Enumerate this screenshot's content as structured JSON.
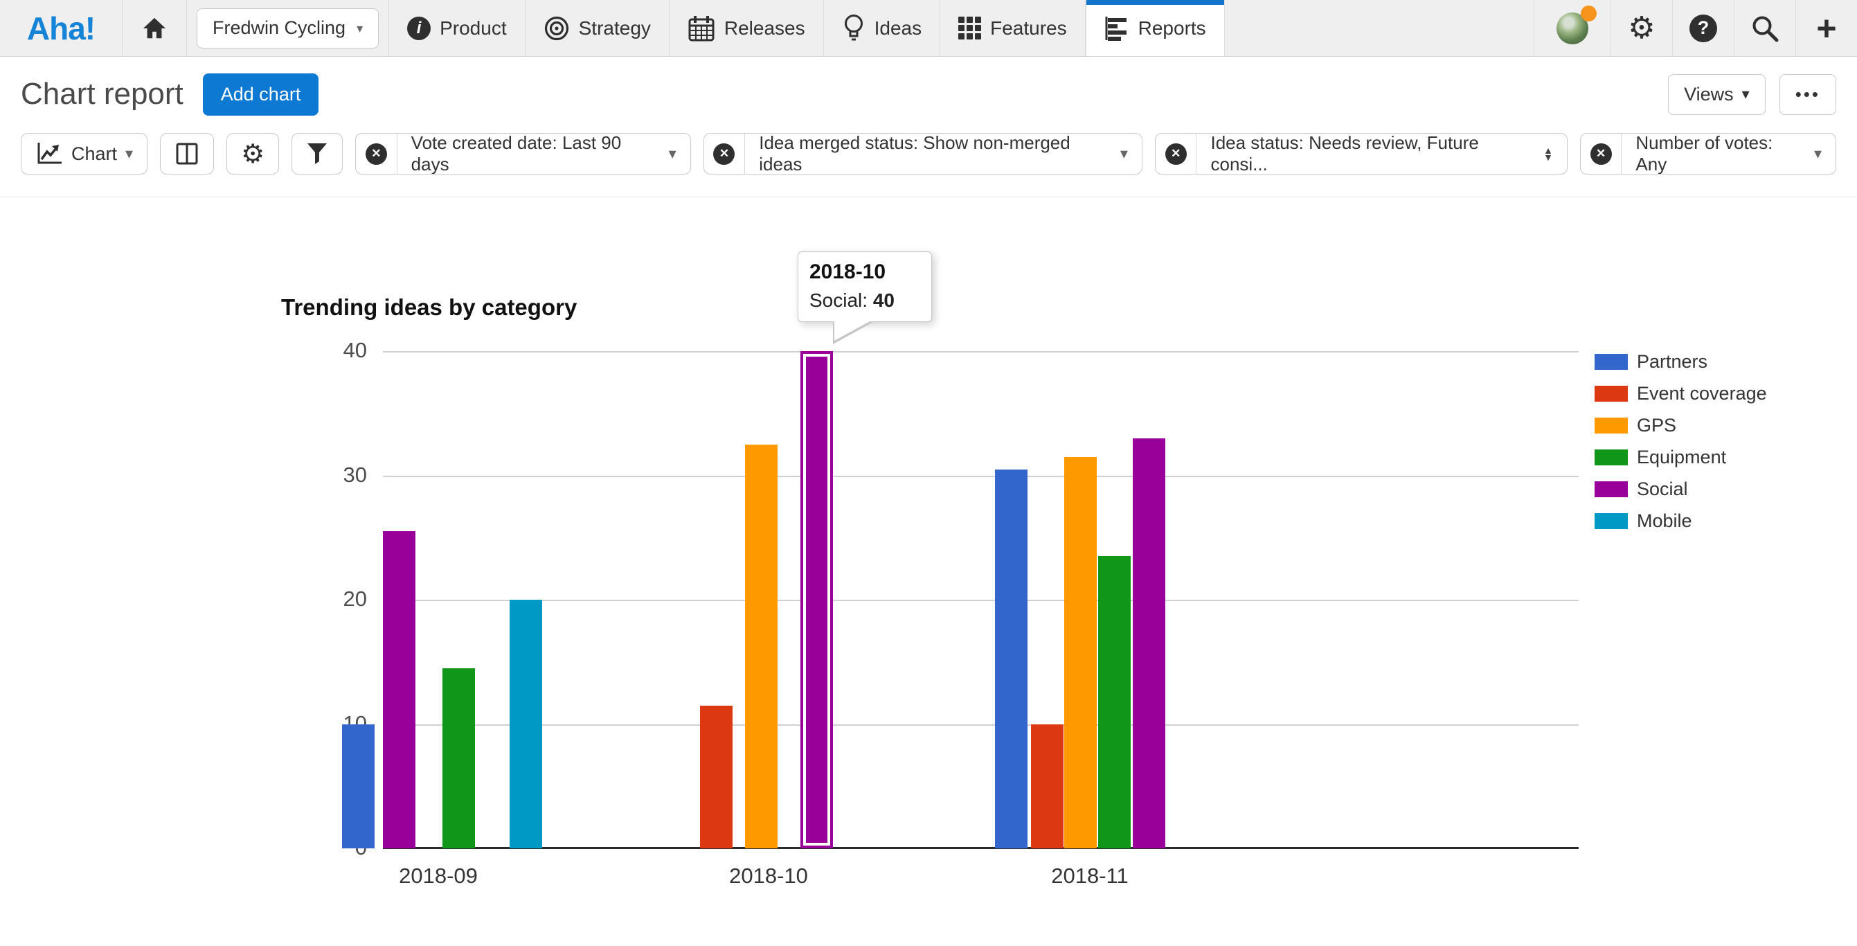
{
  "nav": {
    "logo_text": "Aha!",
    "workspace": {
      "label": "Fredwin Cycling"
    },
    "items": [
      {
        "label": "Product"
      },
      {
        "label": "Strategy"
      },
      {
        "label": "Releases"
      },
      {
        "label": "Ideas"
      },
      {
        "label": "Features"
      },
      {
        "label": "Reports",
        "active": true
      }
    ]
  },
  "header": {
    "title": "Chart report",
    "add_chart_label": "Add chart",
    "views_label": "Views",
    "more_label": "•••"
  },
  "toolbar": {
    "chart_button_label": "Chart",
    "filters": [
      {
        "label": "Vote created date: Last 90 days",
        "caret": "down"
      },
      {
        "label": "Idea merged status: Show non-merged ideas",
        "caret": "down"
      },
      {
        "label": "Idea status: Needs review, Future consi...",
        "caret": "updown"
      },
      {
        "label": "Number of votes: Any",
        "caret": "down"
      }
    ]
  },
  "icons": {
    "caret_down": "▾",
    "caret_up_small": "▲",
    "caret_down_small": "▼",
    "x_circle": "✕",
    "gear": "⚙",
    "help": "?",
    "plus": "+",
    "info": "i"
  },
  "chart_data": {
    "type": "bar",
    "title": "Trending ideas by category",
    "categories": [
      "2018-09",
      "2018-10",
      "2018-11"
    ],
    "series": [
      {
        "name": "Partners",
        "color": "#3366cc",
        "values": [
          10,
          null,
          30.5
        ]
      },
      {
        "name": "Event coverage",
        "color": "#dc3912",
        "values": [
          null,
          11.5,
          10
        ]
      },
      {
        "name": "GPS",
        "color": "#ff9900",
        "values": [
          null,
          32.5,
          31.5
        ]
      },
      {
        "name": "Equipment",
        "color": "#109618",
        "values": [
          14.5,
          null,
          23.5
        ]
      },
      {
        "name": "Social",
        "color": "#990099",
        "values": [
          25.5,
          40,
          33
        ]
      },
      {
        "name": "Mobile",
        "color": "#0099c6",
        "values": [
          20,
          null,
          null
        ]
      }
    ],
    "ylim": [
      0,
      40
    ],
    "yticks": [
      0,
      10,
      20,
      30,
      40
    ],
    "grid": "horizontal",
    "legend_position": "right",
    "highlight": {
      "series": "Social",
      "category": "2018-10"
    },
    "tooltip": {
      "title": "2018-10",
      "series": "Social",
      "value": "40"
    }
  }
}
